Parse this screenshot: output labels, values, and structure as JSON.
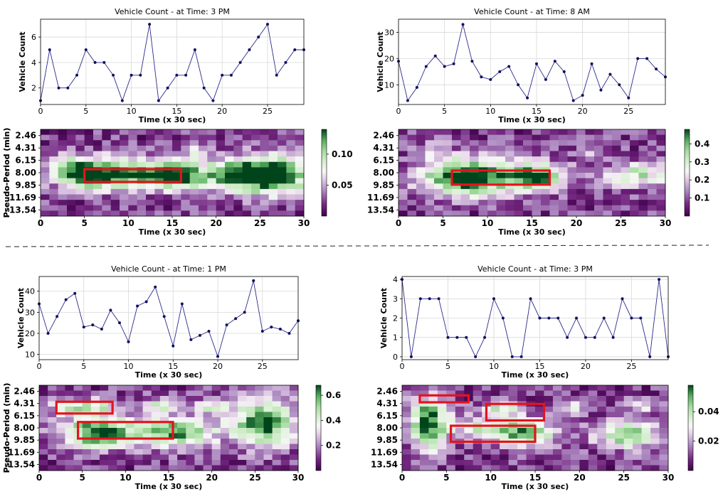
{
  "chart_data": [
    {
      "panel": "top-left",
      "line": {
        "type": "line",
        "title": "Vehicle Count - at Time: 3 PM",
        "xlabel": "Time (x 30 sec)",
        "ylabel": "Vehicle Count",
        "xlim": [
          0,
          29
        ],
        "ylim": [
          0.7,
          7.4
        ],
        "xticks": [
          0,
          5,
          10,
          15,
          20,
          25
        ],
        "yticks": [
          2,
          4,
          6
        ],
        "x": [
          0,
          1,
          2,
          3,
          4,
          5,
          6,
          7,
          8,
          9,
          10,
          11,
          12,
          13,
          14,
          15,
          16,
          17,
          18,
          19,
          20,
          21,
          22,
          23,
          24,
          25,
          26,
          27,
          28,
          29
        ],
        "y": [
          1,
          5,
          2,
          2,
          3,
          5,
          4,
          4,
          3,
          1,
          3,
          3,
          7,
          1,
          2,
          3,
          3,
          5,
          2,
          1,
          3,
          3,
          4,
          5,
          6,
          7,
          3,
          4,
          5,
          5
        ]
      },
      "heatmap": {
        "type": "heatmap",
        "xlabel": "Time (x 30 sec)",
        "ylabel": "Pseudo-Period (min)",
        "xticks": [
          0,
          5,
          10,
          15,
          20,
          25,
          30
        ],
        "yticks": [
          "2.46",
          "4.31",
          "6.15",
          "8.00",
          "9.85",
          "11.69",
          "13.54"
        ],
        "colorbar_ticks": [
          "0.05",
          "0.10"
        ],
        "colorbar_range": [
          0,
          0.14
        ],
        "blobs": [
          [
            7.5,
            9.9,
            3.5,
            1.8,
            0.9
          ],
          [
            15,
            9.9,
            2.5,
            1.8,
            1.0
          ],
          [
            26,
            9.9,
            3.0,
            2.3,
            1.2
          ],
          [
            4,
            9.0,
            2.0,
            2.0,
            0.45
          ],
          [
            21,
            9.9,
            2.0,
            2.0,
            0.45
          ],
          [
            9,
            6.2,
            1.2,
            0.9,
            0.25
          ],
          [
            18,
            5.5,
            1.2,
            0.9,
            0.25
          ]
        ],
        "highlights": [
          [
            5,
            8.85,
            16,
            11.2
          ]
        ]
      }
    },
    {
      "panel": "top-right",
      "line": {
        "type": "line",
        "title": "Vehicle Count - at Time: 8 AM",
        "xlabel": "Time (x 30 sec)",
        "ylabel": "Vehicle Count",
        "xlim": [
          0,
          29
        ],
        "ylim": [
          2.5,
          35
        ],
        "xticks": [
          0,
          5,
          10,
          15,
          20,
          25
        ],
        "yticks": [
          10,
          20,
          30
        ],
        "x": [
          0,
          1,
          2,
          3,
          4,
          5,
          6,
          7,
          8,
          9,
          10,
          11,
          12,
          13,
          14,
          15,
          16,
          17,
          18,
          19,
          20,
          21,
          22,
          23,
          24,
          25,
          26,
          27,
          28,
          29
        ],
        "y": [
          19,
          4,
          9,
          17,
          21,
          17,
          18,
          33,
          19,
          13,
          12,
          15,
          17,
          10,
          5,
          18,
          12,
          19,
          15,
          4,
          6,
          18,
          8,
          14,
          10,
          5,
          20,
          20,
          16,
          13
        ]
      },
      "heatmap": {
        "type": "heatmap",
        "xlabel": "Time (x 30 sec)",
        "ylabel": "Pseudo-Period (min)",
        "xticks": [
          0,
          5,
          10,
          15,
          20,
          25,
          30
        ],
        "yticks": [
          "2.46",
          "4.31",
          "6.15",
          "8.00",
          "9.85",
          "11.69",
          "13.54"
        ],
        "colorbar_ticks": [
          "0.1",
          "0.2",
          "0.3",
          "0.4"
        ],
        "colorbar_range": [
          0,
          0.48
        ],
        "blobs": [
          [
            7.5,
            10.3,
            3.5,
            2.3,
            1.0
          ],
          [
            15.5,
            10.3,
            2.5,
            1.8,
            0.8
          ],
          [
            27,
            9.9,
            2.8,
            1.6,
            0.5
          ],
          [
            22,
            5.5,
            1.5,
            1.2,
            0.2
          ],
          [
            4,
            5.0,
            1.3,
            1.0,
            0.25
          ],
          [
            12,
            5.5,
            1.2,
            0.9,
            0.2
          ]
        ],
        "highlights": [
          [
            6,
            9.1,
            17,
            11.7
          ]
        ]
      }
    },
    {
      "panel": "bottom-left",
      "line": {
        "type": "line",
        "title": "Vehicle Count - at Time: 1 PM",
        "xlabel": "Time (x 30 sec)",
        "ylabel": "Vehicle Count",
        "xlim": [
          0,
          29
        ],
        "ylim": [
          7.5,
          47
        ],
        "xticks": [
          0,
          5,
          10,
          15,
          20,
          25
        ],
        "yticks": [
          10,
          20,
          30,
          40
        ],
        "x": [
          0,
          1,
          2,
          3,
          4,
          5,
          6,
          7,
          8,
          9,
          10,
          11,
          12,
          13,
          14,
          15,
          16,
          17,
          18,
          19,
          20,
          21,
          22,
          23,
          24,
          25,
          26,
          27,
          28,
          29
        ],
        "y": [
          34,
          20,
          28,
          36,
          39,
          23,
          24,
          22,
          31,
          25,
          16,
          33,
          35,
          42,
          28,
          14,
          34,
          17,
          19,
          21,
          9,
          24,
          27,
          30,
          45,
          21,
          23,
          22,
          20,
          26
        ]
      },
      "heatmap": {
        "type": "heatmap",
        "xlabel": "Time (x 30 sec)",
        "ylabel": "Pseudo-Period (min)",
        "xticks": [
          0,
          5,
          10,
          15,
          20,
          25,
          30
        ],
        "yticks": [
          "2.46",
          "4.31",
          "6.15",
          "8.00",
          "9.85",
          "11.69",
          "13.54"
        ],
        "colorbar_ticks": [
          "0.2",
          "0.4",
          "0.6"
        ],
        "colorbar_range": [
          0,
          0.68
        ],
        "blobs": [
          [
            7,
            10.3,
            3.0,
            2.0,
            0.9
          ],
          [
            16,
            10.3,
            3.0,
            2.0,
            0.75
          ],
          [
            26,
            8.5,
            2.6,
            3.0,
            0.85
          ],
          [
            3.5,
            5.5,
            1.5,
            1.0,
            0.55
          ],
          [
            7,
            5.5,
            1.5,
            1.0,
            0.45
          ],
          [
            14,
            5.3,
            1.5,
            1.0,
            0.45
          ],
          [
            20,
            5.5,
            1.5,
            1.0,
            0.4
          ]
        ],
        "highlights": [
          [
            2,
            4.6,
            8.5,
            6.8
          ],
          [
            4.5,
            8.4,
            15.5,
            11.5
          ]
        ]
      }
    },
    {
      "panel": "bottom-right",
      "line": {
        "type": "line",
        "title": "Vehicle Count - at Time: 3 PM",
        "xlabel": "Time (x 30 sec)",
        "ylabel": "Vehicle Count",
        "xlim": [
          0,
          29
        ],
        "ylim": [
          -0.15,
          4.15
        ],
        "xticks": [
          0,
          5,
          10,
          15,
          20,
          25
        ],
        "yticks": [
          0,
          1,
          2,
          3,
          4
        ],
        "x": [
          0,
          1,
          2,
          3,
          4,
          5,
          6,
          7,
          8,
          9,
          10,
          11,
          12,
          13,
          14,
          15,
          16,
          17,
          18,
          19,
          20,
          21,
          22,
          23,
          24,
          25,
          26,
          27,
          28,
          29
        ],
        "y": [
          4,
          0,
          3,
          3,
          3,
          1,
          1,
          1,
          0,
          1,
          3,
          2,
          0,
          0,
          3,
          2,
          2,
          2,
          1,
          2,
          1,
          1,
          2,
          1,
          3,
          2,
          2,
          0,
          4,
          0
        ]
      },
      "heatmap": {
        "type": "heatmap",
        "xlabel": "Time (x 30 sec)",
        "ylabel": "Pseudo-Period (min)",
        "xticks": [
          0,
          5,
          10,
          15,
          20,
          25,
          30
        ],
        "yticks": [
          "2.46",
          "4.31",
          "6.15",
          "8.00",
          "9.85",
          "11.69",
          "13.54"
        ],
        "colorbar_ticks": [
          "0.02",
          "0.04"
        ],
        "colorbar_range": [
          0,
          0.058
        ],
        "blobs": [
          [
            3,
            8.5,
            1.5,
            3.5,
            0.85
          ],
          [
            13.5,
            10.3,
            2.5,
            1.8,
            0.8
          ],
          [
            11,
            6.0,
            1.5,
            1.0,
            0.5
          ],
          [
            25.5,
            10.8,
            2.5,
            1.8,
            0.7
          ],
          [
            19,
            5.5,
            1.5,
            1.2,
            0.3
          ],
          [
            27,
            5.5,
            1.5,
            1.0,
            0.3
          ],
          [
            8,
            9.5,
            1.5,
            1.5,
            0.4
          ]
        ],
        "highlights": [
          [
            2,
            3.4,
            7.5,
            4.7
          ],
          [
            9.5,
            5.0,
            16,
            8.1
          ],
          [
            5.5,
            9.1,
            15,
            12.1
          ]
        ]
      }
    }
  ]
}
